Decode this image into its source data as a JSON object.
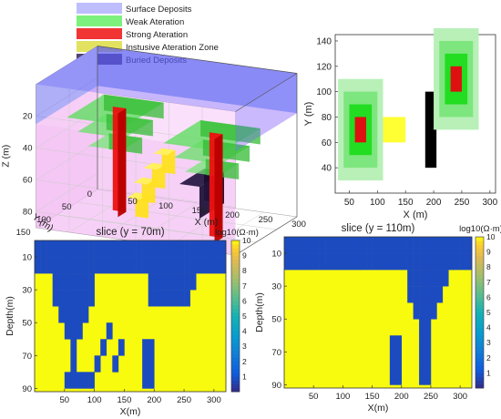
{
  "legend": {
    "items": [
      {
        "label": "Surface Deposits",
        "color": "#b3b3ff"
      },
      {
        "label": "Weak Ateration",
        "color": "#66ee66"
      },
      {
        "label": "Strong Ateration",
        "color": "#ee1111"
      },
      {
        "label": "Instusive Ateration Zone",
        "color": "#dddd44"
      },
      {
        "label": "Buried Deposits",
        "color": "#332255"
      }
    ]
  },
  "chart_data": [
    {
      "type": "other",
      "view": "3d",
      "xlabel": "X (m)",
      "ylabel": "Y (m)",
      "zlabel": "Z (m)",
      "xticks": [
        "50",
        "100",
        "150",
        "200",
        "250",
        "300"
      ],
      "yticks": [
        "150",
        "100",
        "50",
        "0"
      ],
      "zticks": [
        "20",
        "40",
        "60",
        "80"
      ],
      "bodies": [
        {
          "name": "Surface Deposits",
          "z": [
            0,
            25
          ]
        },
        {
          "name": "Weak Ateration",
          "stacks": [
            [
              70,
              70
            ],
            [
              240,
              110
            ]
          ]
        },
        {
          "name": "Strong Ateration",
          "pipes": [
            [
              70,
              70
            ],
            [
              240,
              110
            ]
          ],
          "z": [
            25,
            90
          ]
        },
        {
          "name": "Instusive Ateration Zone",
          "x": [
            100,
            160
          ],
          "z": [
            50,
            90
          ]
        },
        {
          "name": "Buried Deposits",
          "x": [
            185,
            215
          ],
          "y": [
            40,
            100
          ],
          "z": [
            60,
            80
          ]
        }
      ]
    },
    {
      "type": "other",
      "view": "plan",
      "xlabel": "X (m)",
      "ylabel": "Y (m)",
      "xlim": [
        25,
        310
      ],
      "ylim": [
        20,
        145
      ],
      "xticks": [
        50,
        100,
        150,
        200,
        250,
        300
      ],
      "yticks": [
        40,
        60,
        80,
        100,
        120,
        140
      ],
      "rects": [
        {
          "x": [
            30,
            110
          ],
          "y": [
            30,
            110
          ],
          "color": "#b8f0b8"
        },
        {
          "x": [
            40,
            100
          ],
          "y": [
            40,
            100
          ],
          "color": "#7ee67e"
        },
        {
          "x": [
            50,
            90
          ],
          "y": [
            50,
            90
          ],
          "color": "#22dd22"
        },
        {
          "x": [
            60,
            80
          ],
          "y": [
            60,
            80
          ],
          "color": "#dd1111"
        },
        {
          "x": [
            110,
            150
          ],
          "y": [
            60,
            80
          ],
          "color": "#ffff33"
        },
        {
          "x": [
            185,
            205
          ],
          "y": [
            40,
            100
          ],
          "color": "#000000"
        },
        {
          "x": [
            200,
            280
          ],
          "y": [
            70,
            150
          ],
          "color": "#b8f0b8"
        },
        {
          "x": [
            210,
            270
          ],
          "y": [
            80,
            140
          ],
          "color": "#7ee67e"
        },
        {
          "x": [
            220,
            260
          ],
          "y": [
            90,
            130
          ],
          "color": "#22dd22"
        },
        {
          "x": [
            230,
            250
          ],
          "y": [
            100,
            120
          ],
          "color": "#dd1111"
        }
      ]
    },
    {
      "type": "heatmap",
      "title": "slice (y = 70m)",
      "xlabel": "X(m)",
      "ylabel": "Depth(m)",
      "xlim": [
        0,
        320
      ],
      "ylim": [
        92,
        0
      ],
      "xticks": [
        50,
        100,
        150,
        200,
        250,
        300
      ],
      "yticks": [
        10,
        30,
        50,
        70,
        90
      ],
      "colorbar": {
        "title": "log10(Ω·m)",
        "ticks": [
          1,
          2,
          3,
          4,
          5,
          6,
          7,
          8,
          9,
          10
        ],
        "range": [
          0,
          10
        ]
      },
      "background_value": 10,
      "low_value": 0.8,
      "cell_size": 10,
      "low_cells": [
        [
          0,
          0
        ],
        [
          10,
          0
        ],
        [
          20,
          0
        ],
        [
          30,
          0
        ],
        [
          40,
          0
        ],
        [
          50,
          0
        ],
        [
          60,
          0
        ],
        [
          70,
          0
        ],
        [
          80,
          0
        ],
        [
          90,
          0
        ],
        [
          100,
          0
        ],
        [
          110,
          0
        ],
        [
          120,
          0
        ],
        [
          130,
          0
        ],
        [
          140,
          0
        ],
        [
          150,
          0
        ],
        [
          160,
          0
        ],
        [
          170,
          0
        ],
        [
          180,
          0
        ],
        [
          190,
          0
        ],
        [
          200,
          0
        ],
        [
          210,
          0
        ],
        [
          220,
          0
        ],
        [
          230,
          0
        ],
        [
          240,
          0
        ],
        [
          250,
          0
        ],
        [
          260,
          0
        ],
        [
          270,
          0
        ],
        [
          280,
          0
        ],
        [
          290,
          0
        ],
        [
          300,
          0
        ],
        [
          310,
          0
        ],
        [
          0,
          10
        ],
        [
          10,
          10
        ],
        [
          20,
          10
        ],
        [
          30,
          10
        ],
        [
          40,
          10
        ],
        [
          50,
          10
        ],
        [
          60,
          10
        ],
        [
          70,
          10
        ],
        [
          80,
          10
        ],
        [
          90,
          10
        ],
        [
          100,
          10
        ],
        [
          110,
          10
        ],
        [
          120,
          10
        ],
        [
          130,
          10
        ],
        [
          140,
          10
        ],
        [
          150,
          10
        ],
        [
          160,
          10
        ],
        [
          170,
          10
        ],
        [
          180,
          10
        ],
        [
          190,
          10
        ],
        [
          200,
          10
        ],
        [
          210,
          10
        ],
        [
          220,
          10
        ],
        [
          230,
          10
        ],
        [
          240,
          10
        ],
        [
          250,
          10
        ],
        [
          260,
          10
        ],
        [
          270,
          10
        ],
        [
          280,
          10
        ],
        [
          290,
          10
        ],
        [
          300,
          10
        ],
        [
          310,
          10
        ],
        [
          30,
          20
        ],
        [
          40,
          20
        ],
        [
          50,
          20
        ],
        [
          60,
          20
        ],
        [
          70,
          20
        ],
        [
          80,
          20
        ],
        [
          90,
          20
        ],
        [
          30,
          30
        ],
        [
          40,
          30
        ],
        [
          50,
          30
        ],
        [
          60,
          30
        ],
        [
          70,
          30
        ],
        [
          80,
          30
        ],
        [
          90,
          30
        ],
        [
          40,
          40
        ],
        [
          50,
          40
        ],
        [
          60,
          40
        ],
        [
          70,
          40
        ],
        [
          80,
          40
        ],
        [
          50,
          50
        ],
        [
          60,
          50
        ],
        [
          70,
          50
        ],
        [
          60,
          60
        ],
        [
          60,
          70
        ],
        [
          50,
          80
        ],
        [
          60,
          80
        ],
        [
          70,
          80
        ],
        [
          80,
          80
        ],
        [
          190,
          20
        ],
        [
          200,
          20
        ],
        [
          210,
          20
        ],
        [
          220,
          20
        ],
        [
          230,
          20
        ],
        [
          240,
          20
        ],
        [
          250,
          20
        ],
        [
          260,
          20
        ],
        [
          190,
          30
        ],
        [
          200,
          30
        ],
        [
          210,
          30
        ],
        [
          220,
          30
        ],
        [
          230,
          30
        ],
        [
          240,
          30
        ],
        [
          250,
          30
        ],
        [
          120,
          50
        ],
        [
          110,
          60
        ],
        [
          100,
          70
        ],
        [
          90,
          80
        ],
        [
          140,
          60
        ],
        [
          130,
          70
        ],
        [
          180,
          60
        ],
        [
          190,
          60
        ],
        [
          180,
          70
        ],
        [
          190,
          70
        ],
        [
          180,
          80
        ],
        [
          190,
          80
        ]
      ]
    },
    {
      "type": "heatmap",
      "title": "slice (y = 110m)",
      "xlabel": "X(m)",
      "ylabel": "Depth(m)",
      "xlim": [
        0,
        320
      ],
      "ylim": [
        92,
        0
      ],
      "xticks": [
        50,
        100,
        150,
        200,
        250,
        300
      ],
      "yticks": [
        10,
        30,
        50,
        70,
        90
      ],
      "colorbar": {
        "title": "log10(Ω·m)",
        "ticks": [
          1,
          2,
          3,
          4,
          5,
          6,
          7,
          8,
          9,
          10
        ],
        "range": [
          0,
          10
        ]
      },
      "background_value": 10,
      "low_value": 0.8,
      "cell_size": 10,
      "low_cells": [
        [
          0,
          0
        ],
        [
          10,
          0
        ],
        [
          20,
          0
        ],
        [
          30,
          0
        ],
        [
          40,
          0
        ],
        [
          50,
          0
        ],
        [
          60,
          0
        ],
        [
          70,
          0
        ],
        [
          80,
          0
        ],
        [
          90,
          0
        ],
        [
          100,
          0
        ],
        [
          110,
          0
        ],
        [
          120,
          0
        ],
        [
          130,
          0
        ],
        [
          140,
          0
        ],
        [
          150,
          0
        ],
        [
          160,
          0
        ],
        [
          170,
          0
        ],
        [
          180,
          0
        ],
        [
          190,
          0
        ],
        [
          200,
          0
        ],
        [
          210,
          0
        ],
        [
          220,
          0
        ],
        [
          230,
          0
        ],
        [
          240,
          0
        ],
        [
          250,
          0
        ],
        [
          260,
          0
        ],
        [
          270,
          0
        ],
        [
          280,
          0
        ],
        [
          290,
          0
        ],
        [
          300,
          0
        ],
        [
          310,
          0
        ],
        [
          0,
          10
        ],
        [
          10,
          10
        ],
        [
          20,
          10
        ],
        [
          30,
          10
        ],
        [
          40,
          10
        ],
        [
          50,
          10
        ],
        [
          60,
          10
        ],
        [
          70,
          10
        ],
        [
          80,
          10
        ],
        [
          90,
          10
        ],
        [
          100,
          10
        ],
        [
          110,
          10
        ],
        [
          120,
          10
        ],
        [
          130,
          10
        ],
        [
          140,
          10
        ],
        [
          150,
          10
        ],
        [
          160,
          10
        ],
        [
          170,
          10
        ],
        [
          180,
          10
        ],
        [
          190,
          10
        ],
        [
          200,
          10
        ],
        [
          210,
          10
        ],
        [
          220,
          10
        ],
        [
          230,
          10
        ],
        [
          240,
          10
        ],
        [
          250,
          10
        ],
        [
          260,
          10
        ],
        [
          270,
          10
        ],
        [
          280,
          10
        ],
        [
          290,
          10
        ],
        [
          300,
          10
        ],
        [
          310,
          10
        ],
        [
          210,
          20
        ],
        [
          220,
          20
        ],
        [
          230,
          20
        ],
        [
          240,
          20
        ],
        [
          250,
          20
        ],
        [
          260,
          20
        ],
        [
          270,
          20
        ],
        [
          210,
          30
        ],
        [
          220,
          30
        ],
        [
          230,
          30
        ],
        [
          240,
          30
        ],
        [
          250,
          30
        ],
        [
          260,
          30
        ],
        [
          220,
          40
        ],
        [
          230,
          40
        ],
        [
          240,
          40
        ],
        [
          250,
          40
        ],
        [
          230,
          50
        ],
        [
          240,
          50
        ],
        [
          230,
          60
        ],
        [
          240,
          60
        ],
        [
          230,
          70
        ],
        [
          240,
          70
        ],
        [
          230,
          80
        ],
        [
          240,
          80
        ],
        [
          180,
          60
        ],
        [
          190,
          60
        ],
        [
          180,
          70
        ],
        [
          190,
          70
        ],
        [
          180,
          80
        ],
        [
          190,
          80
        ]
      ]
    }
  ]
}
